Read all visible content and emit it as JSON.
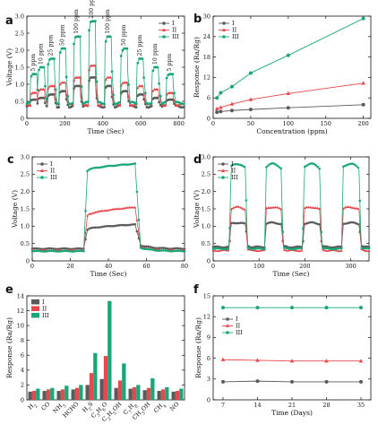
{
  "colors": {
    "I": "#5a5a5a",
    "II": "#e8474b",
    "III": "#1aa67a"
  },
  "chart_data": [
    {
      "panel": "a",
      "type": "line",
      "xlabel": "Time (Sec)",
      "ylabel": "Voltage (V)",
      "xlim": [
        0,
        830
      ],
      "ylim": [
        0,
        3
      ],
      "xticks": [
        0,
        200,
        400,
        600,
        800
      ],
      "yticks": [
        0,
        0.5,
        1.0,
        1.5,
        2.0,
        2.5,
        3.0
      ],
      "ytick_labels": [
        "0",
        "0.5",
        "1.0",
        "1.5",
        "2.0",
        "2.5",
        "3.0"
      ],
      "legend": [
        "I",
        "II",
        "III"
      ],
      "legend_loc": "top-right",
      "baselines": {
        "I": 0.35,
        "II": 0.4,
        "III": 0.45
      },
      "pulses": [
        {
          "label": "5 ppm",
          "start": 18,
          "peak_I": 0.55,
          "peak_II": 0.75,
          "peak_III": 1.3
        },
        {
          "label": "10 ppm",
          "start": 58,
          "peak_I": 0.6,
          "peak_II": 0.85,
          "peak_III": 1.5
        },
        {
          "label": "25 ppm",
          "start": 110,
          "peak_I": 0.7,
          "peak_II": 0.95,
          "peak_III": 1.75
        },
        {
          "label": "50 ppm",
          "start": 170,
          "peak_I": 0.8,
          "peak_II": 1.05,
          "peak_III": 2.05
        },
        {
          "label": "100 ppm",
          "start": 245,
          "peak_I": 0.95,
          "peak_II": 1.2,
          "peak_III": 2.4
        },
        {
          "label": "200 ppm",
          "start": 325,
          "peak_I": 1.2,
          "peak_II": 1.55,
          "peak_III": 2.85
        },
        {
          "label": "100 ppm",
          "start": 410,
          "peak_I": 0.95,
          "peak_II": 1.2,
          "peak_III": 2.4
        },
        {
          "label": "50 ppm",
          "start": 495,
          "peak_I": 0.8,
          "peak_II": 1.05,
          "peak_III": 2.05
        },
        {
          "label": "25 ppm",
          "start": 580,
          "peak_I": 0.7,
          "peak_II": 0.95,
          "peak_III": 1.75
        },
        {
          "label": "10 ppm",
          "start": 660,
          "peak_I": 0.6,
          "peak_II": 0.85,
          "peak_III": 1.5
        },
        {
          "label": "5 ppm",
          "start": 735,
          "peak_I": 0.55,
          "peak_II": 0.75,
          "peak_III": 1.3
        }
      ],
      "pulse_width": 35
    },
    {
      "panel": "b",
      "type": "line",
      "xlabel": "Concentration (ppm)",
      "ylabel": "Response (Ra/Rg)",
      "xlim": [
        0,
        210
      ],
      "ylim": [
        0,
        30
      ],
      "xticks": [
        0,
        50,
        100,
        150,
        200
      ],
      "yticks": [
        0,
        6,
        12,
        18,
        24,
        30
      ],
      "legend": [
        "I",
        "II",
        "III"
      ],
      "legend_loc": "top-left",
      "x": [
        5,
        10,
        25,
        50,
        100,
        200
      ],
      "series": [
        {
          "name": "I",
          "values": [
            1.8,
            2.0,
            2.3,
            2.6,
            3.1,
            4.0
          ]
        },
        {
          "name": "II",
          "values": [
            2.8,
            3.2,
            4.2,
            5.5,
            7.3,
            10.3
          ]
        },
        {
          "name": "III",
          "values": [
            6.0,
            7.5,
            9.3,
            13.3,
            18.5,
            29.3
          ]
        }
      ]
    },
    {
      "panel": "c",
      "type": "line",
      "xlabel": "Time (Sec)",
      "ylabel": "Voltage (V)",
      "xlim": [
        0,
        80
      ],
      "ylim": [
        0,
        3
      ],
      "xticks": [
        0,
        20,
        40,
        60,
        80
      ],
      "yticks": [
        0,
        0.5,
        1.0,
        1.5,
        2.0,
        2.5,
        3.0
      ],
      "ytick_labels": [
        "0",
        "0.5",
        "1.0",
        "1.5",
        "2.0",
        "2.5",
        "3.0"
      ],
      "legend": [
        "I",
        "II",
        "III"
      ],
      "legend_loc": "top-left",
      "on_time": 27,
      "off_time": 54,
      "baselines": {
        "I": 0.35,
        "II": 0.3,
        "III": 0.28
      },
      "plateau_start": {
        "I": 0.9,
        "II": 1.3,
        "III": 2.6
      },
      "plateau_end": {
        "I": 1.05,
        "II": 1.55,
        "III": 2.8
      }
    },
    {
      "panel": "d",
      "type": "line",
      "xlabel": "Time (Sec)",
      "ylabel": "Voltage (V)",
      "xlim": [
        0,
        340
      ],
      "ylim": [
        0,
        3
      ],
      "xticks": [
        0,
        100,
        200,
        300
      ],
      "yticks": [
        0,
        0.5,
        1.0,
        1.5,
        2.0,
        2.5,
        3.0
      ],
      "ytick_labels": [
        "0",
        "0.5",
        "1.0",
        "1.5",
        "2.0",
        "2.5",
        "3.0"
      ],
      "legend": [
        "I",
        "II",
        "III"
      ],
      "legend_loc": "top-left",
      "pulses": [
        {
          "start": 35,
          "end": 70
        },
        {
          "start": 112,
          "end": 148
        },
        {
          "start": 195,
          "end": 232
        },
        {
          "start": 280,
          "end": 318
        }
      ],
      "baselines": {
        "I": 0.4,
        "II": 0.3,
        "III": 0.35
      },
      "peaks": {
        "I": 1.1,
        "II": 1.55,
        "III": 2.8
      }
    },
    {
      "panel": "e",
      "type": "bar",
      "ylabel": "Response (Ra/Rg)",
      "ylim": [
        0,
        14
      ],
      "yticks": [
        0,
        2,
        4,
        6,
        8,
        10,
        12,
        14
      ],
      "legend": [
        "I",
        "II",
        "III"
      ],
      "legend_loc": "top-left",
      "categories": [
        "H2",
        "CO",
        "NH3",
        "HCHO",
        "H2S",
        "C3H6O",
        "C2H5OH",
        "C7H8",
        "CH3OH",
        "CH4",
        "NO"
      ],
      "category_labels": [
        [
          "H",
          "2"
        ],
        [
          "CO",
          ""
        ],
        [
          "NH",
          "3"
        ],
        [
          "HCHO",
          ""
        ],
        [
          "H",
          "2",
          "S"
        ],
        [
          "C",
          "3",
          "H",
          "6",
          "O"
        ],
        [
          "C",
          "2",
          "H",
          "5",
          "OH"
        ],
        [
          "C",
          "7",
          "H",
          "8"
        ],
        [
          "CH",
          "3",
          "OH"
        ],
        [
          "CH",
          "4"
        ],
        [
          "NO",
          ""
        ]
      ],
      "series": [
        {
          "name": "I",
          "values": [
            1.1,
            1.2,
            1.2,
            1.4,
            2.0,
            2.8,
            1.6,
            1.5,
            1.3,
            1.2,
            1.1
          ]
        },
        {
          "name": "II",
          "values": [
            1.2,
            1.4,
            1.4,
            1.6,
            3.6,
            5.9,
            2.6,
            1.7,
            1.6,
            1.4,
            1.2
          ]
        },
        {
          "name": "III",
          "values": [
            1.5,
            1.6,
            1.9,
            2.0,
            6.3,
            13.3,
            4.9,
            2.0,
            2.9,
            1.7,
            1.5
          ]
        }
      ]
    },
    {
      "panel": "f",
      "type": "line",
      "xlabel": "Time (Days)",
      "ylabel": "Response (Ra/Rg)",
      "xlim": [
        5,
        37
      ],
      "ylim": [
        0,
        15
      ],
      "xticks": [
        7,
        14,
        21,
        28,
        35
      ],
      "yticks": [
        0,
        3,
        6,
        9,
        12,
        15
      ],
      "legend": [
        "I",
        "II",
        "III"
      ],
      "legend_loc": "top-left",
      "x": [
        7,
        14,
        21,
        28,
        35
      ],
      "series": [
        {
          "name": "I",
          "values": [
            2.6,
            2.7,
            2.6,
            2.6,
            2.6
          ]
        },
        {
          "name": "II",
          "values": [
            5.8,
            5.7,
            5.6,
            5.6,
            5.6
          ]
        },
        {
          "name": "III",
          "values": [
            13.3,
            13.3,
            13.3,
            13.3,
            13.3
          ]
        }
      ]
    }
  ]
}
